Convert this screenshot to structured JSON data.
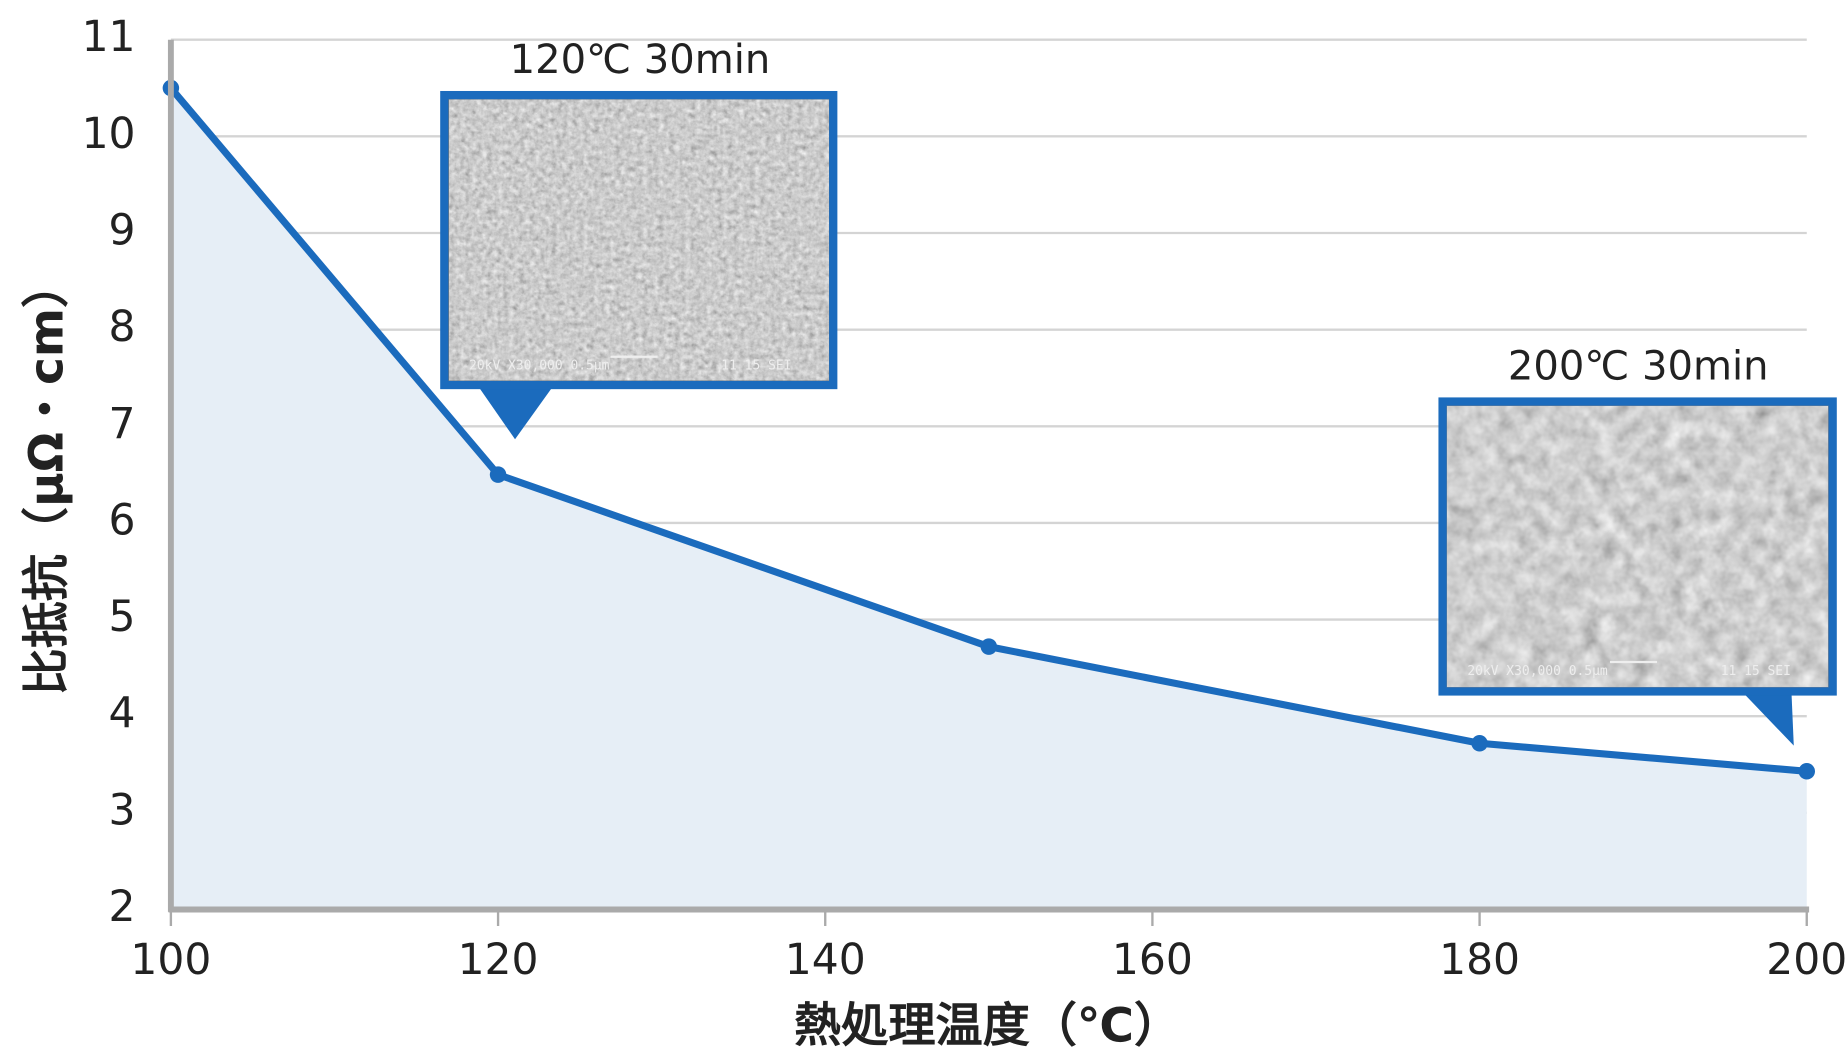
{
  "chart_data": {
    "type": "line",
    "x": [
      100,
      120,
      150,
      180,
      200
    ],
    "values": [
      10.5,
      6.5,
      4.72,
      3.72,
      3.43
    ],
    "color": "#1b6bbd",
    "area_color": "#e6eef6",
    "xlim": [
      100,
      200
    ],
    "xticks": [
      100,
      120,
      140,
      160,
      180,
      200
    ],
    "ylim": [
      2,
      11
    ],
    "yticks": [
      2,
      3,
      4,
      5,
      6,
      7,
      8,
      9,
      10,
      11
    ],
    "grid": true,
    "x_label": "熱処理温度（℃）",
    "y_label": "比抵抗（μΩ・cm）",
    "annotations": [
      {
        "text": "120℃ 30min",
        "caption_left": "20kV  X30,000 0.5μm",
        "caption_right": "11 15 SEI"
      },
      {
        "text": "200℃ 30min",
        "caption_left": "20kV  X30,000 0.5μm",
        "caption_right": "11 15 SEI"
      }
    ]
  }
}
